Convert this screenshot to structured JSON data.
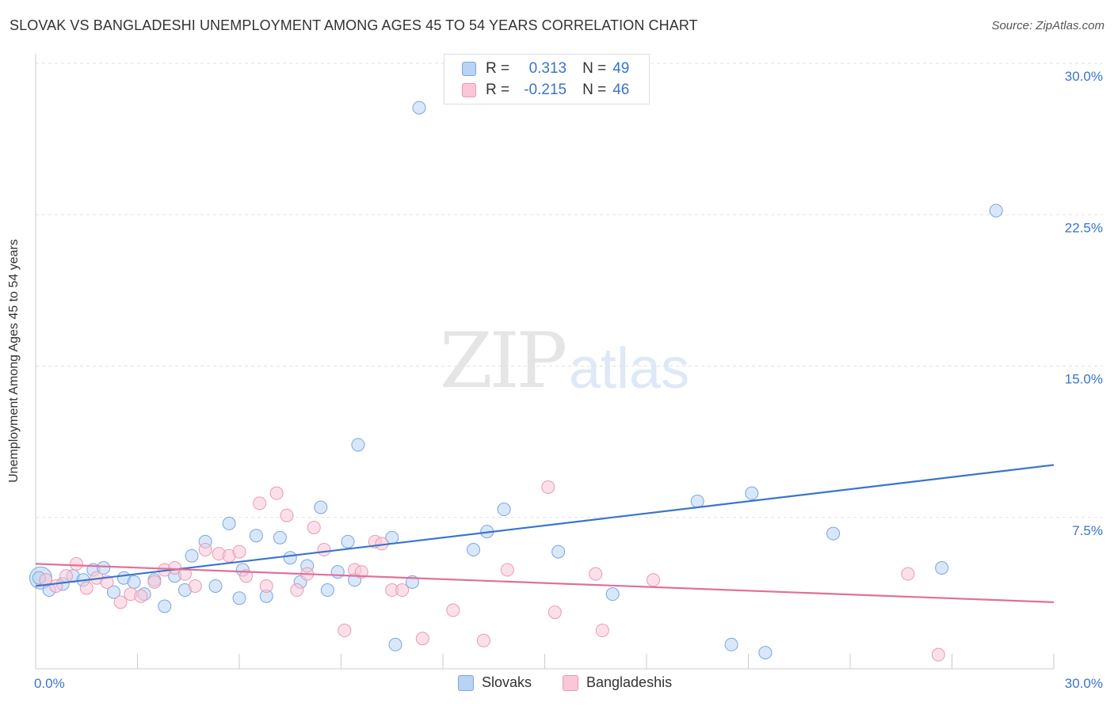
{
  "title": "SLOVAK VS BANGLADESHI UNEMPLOYMENT AMONG AGES 45 TO 54 YEARS CORRELATION CHART",
  "source": "Source: ZipAtlas.com",
  "watermark": {
    "zip": "ZIP",
    "atlas": "atlas"
  },
  "colors": {
    "blue": "#3a74cc",
    "blue_fill": "#b9d3f5",
    "pink": "#e0709a",
    "pink_fill": "#f9c7d7"
  },
  "legend": {
    "rows": [
      {
        "r_label": "R =",
        "r_value": "0.313",
        "n_label": "N =",
        "n_value": "49"
      },
      {
        "r_label": "R =",
        "r_value": "-0.215",
        "n_label": "N =",
        "n_value": "46"
      }
    ]
  },
  "bottom_legend": [
    "Slovaks",
    "Bangladeshis"
  ],
  "chart_data": {
    "type": "scatter",
    "title": "SLOVAK VS BANGLADESHI UNEMPLOYMENT AMONG AGES 45 TO 54 YEARS CORRELATION CHART",
    "ylabel": "Unemployment Among Ages 45 to 54 years",
    "xlabel": "",
    "xlim": [
      0,
      30
    ],
    "ylim": [
      0,
      30
    ],
    "x_tick_labels": [
      "0.0%",
      "30.0%"
    ],
    "y_tick_labels": [
      "7.5%",
      "15.0%",
      "22.5%",
      "30.0%"
    ],
    "y_ticks": [
      7.5,
      15.0,
      22.5,
      30.0
    ],
    "grid": "horizontal dashed",
    "legend_position": "top-center",
    "series": [
      {
        "name": "Slovaks",
        "trend": {
          "x": [
            0,
            30
          ],
          "y": [
            4.1,
            10.1
          ]
        },
        "points": [
          [
            0.1,
            4.5
          ],
          [
            0.4,
            3.9
          ],
          [
            0.8,
            4.2
          ],
          [
            1.1,
            4.6
          ],
          [
            1.4,
            4.4
          ],
          [
            1.7,
            4.9
          ],
          [
            2.0,
            5.0
          ],
          [
            2.3,
            3.8
          ],
          [
            2.6,
            4.5
          ],
          [
            2.9,
            4.3
          ],
          [
            3.2,
            3.7
          ],
          [
            3.5,
            4.4
          ],
          [
            3.8,
            3.1
          ],
          [
            4.1,
            4.6
          ],
          [
            4.4,
            3.9
          ],
          [
            4.6,
            5.6
          ],
          [
            5.0,
            6.3
          ],
          [
            5.3,
            4.1
          ],
          [
            5.7,
            7.2
          ],
          [
            6.1,
            4.9
          ],
          [
            6.0,
            3.5
          ],
          [
            6.5,
            6.6
          ],
          [
            6.8,
            3.6
          ],
          [
            7.2,
            6.5
          ],
          [
            7.5,
            5.5
          ],
          [
            7.8,
            4.3
          ],
          [
            8.0,
            5.1
          ],
          [
            8.4,
            8.0
          ],
          [
            8.6,
            3.9
          ],
          [
            8.9,
            4.8
          ],
          [
            9.2,
            6.3
          ],
          [
            9.4,
            4.4
          ],
          [
            9.5,
            11.1
          ],
          [
            10.5,
            6.5
          ],
          [
            10.6,
            1.2
          ],
          [
            11.1,
            4.3
          ],
          [
            11.3,
            27.8
          ],
          [
            12.9,
            5.9
          ],
          [
            13.3,
            6.8
          ],
          [
            13.8,
            7.9
          ],
          [
            15.4,
            5.8
          ],
          [
            17.0,
            3.7
          ],
          [
            19.5,
            8.3
          ],
          [
            20.5,
            1.2
          ],
          [
            21.1,
            8.7
          ],
          [
            21.5,
            0.8
          ],
          [
            23.5,
            6.7
          ],
          [
            26.7,
            5.0
          ],
          [
            28.3,
            22.7
          ]
        ]
      },
      {
        "name": "Bangladeshis",
        "trend": {
          "x": [
            0,
            30
          ],
          "y": [
            5.2,
            3.3
          ]
        },
        "points": [
          [
            0.3,
            4.4
          ],
          [
            0.6,
            4.1
          ],
          [
            0.9,
            4.6
          ],
          [
            1.2,
            5.2
          ],
          [
            1.5,
            4.0
          ],
          [
            1.8,
            4.5
          ],
          [
            2.1,
            4.3
          ],
          [
            2.5,
            3.3
          ],
          [
            2.8,
            3.7
          ],
          [
            3.1,
            3.6
          ],
          [
            3.5,
            4.3
          ],
          [
            3.8,
            4.9
          ],
          [
            4.1,
            5.0
          ],
          [
            4.4,
            4.7
          ],
          [
            4.7,
            4.1
          ],
          [
            5.0,
            5.9
          ],
          [
            5.4,
            5.7
          ],
          [
            5.7,
            5.6
          ],
          [
            6.0,
            5.8
          ],
          [
            6.2,
            4.6
          ],
          [
            6.6,
            8.2
          ],
          [
            6.8,
            4.1
          ],
          [
            7.1,
            8.7
          ],
          [
            7.4,
            7.6
          ],
          [
            7.7,
            3.9
          ],
          [
            8.0,
            4.7
          ],
          [
            8.2,
            7.0
          ],
          [
            8.5,
            5.9
          ],
          [
            9.1,
            1.9
          ],
          [
            9.4,
            4.9
          ],
          [
            9.6,
            4.8
          ],
          [
            10.0,
            6.3
          ],
          [
            10.2,
            6.2
          ],
          [
            10.5,
            3.9
          ],
          [
            10.8,
            3.9
          ],
          [
            11.4,
            1.5
          ],
          [
            12.3,
            2.9
          ],
          [
            13.2,
            1.4
          ],
          [
            13.9,
            4.9
          ],
          [
            15.1,
            9.0
          ],
          [
            15.3,
            2.8
          ],
          [
            16.5,
            4.7
          ],
          [
            16.7,
            1.9
          ],
          [
            18.2,
            4.4
          ],
          [
            25.7,
            4.7
          ],
          [
            26.6,
            0.7
          ]
        ]
      }
    ]
  }
}
